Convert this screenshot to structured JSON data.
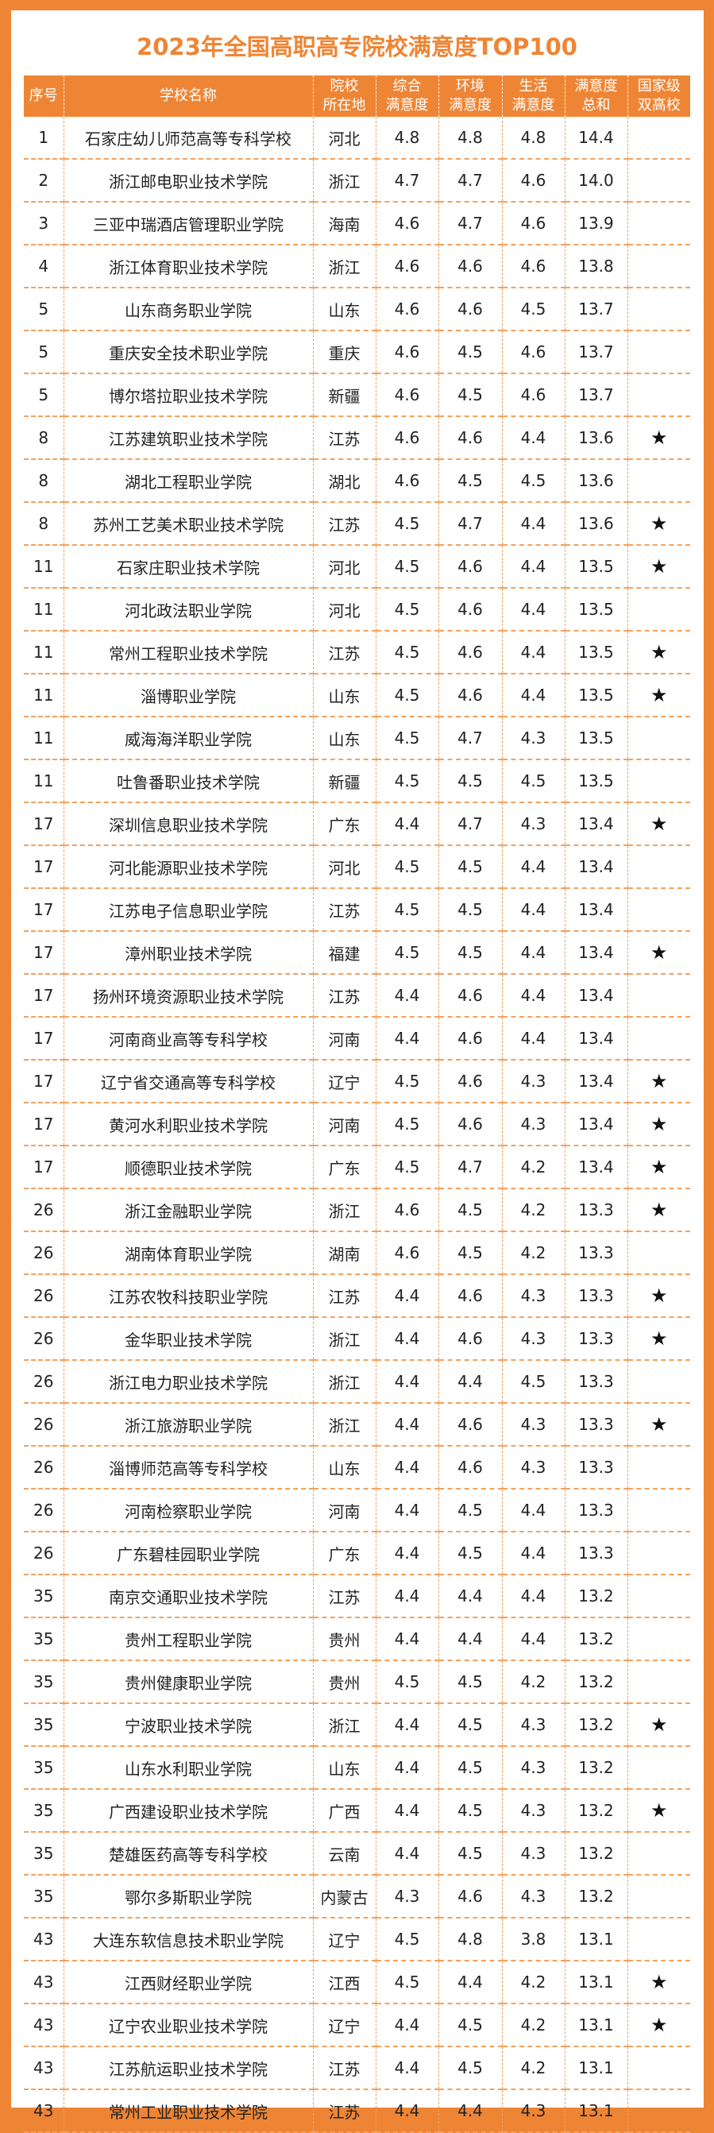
{
  "title": "2023年全国高职高专院校满意度TOP100",
  "headers": [
    "序号",
    "学校名称",
    "院校\n所在地",
    "综合\n满意度",
    "环境\n满意度",
    "生活\n满意度",
    "满意度\n总和",
    "国家级\n双高校"
  ],
  "star_symbol": "★",
  "rows": [
    {
      "rank": "1",
      "name": "石家庄幼儿师范高等专科学校",
      "prov": "河北",
      "overall": "4.8",
      "env": "4.8",
      "life": "4.8",
      "total": "14.4",
      "dual": false
    },
    {
      "rank": "2",
      "name": "浙江邮电职业技术学院",
      "prov": "浙江",
      "overall": "4.7",
      "env": "4.7",
      "life": "4.6",
      "total": "14.0",
      "dual": false
    },
    {
      "rank": "3",
      "name": "三亚中瑞酒店管理职业学院",
      "prov": "海南",
      "overall": "4.6",
      "env": "4.7",
      "life": "4.6",
      "total": "13.9",
      "dual": false
    },
    {
      "rank": "4",
      "name": "浙江体育职业技术学院",
      "prov": "浙江",
      "overall": "4.6",
      "env": "4.6",
      "life": "4.6",
      "total": "13.8",
      "dual": false
    },
    {
      "rank": "5",
      "name": "山东商务职业学院",
      "prov": "山东",
      "overall": "4.6",
      "env": "4.6",
      "life": "4.5",
      "total": "13.7",
      "dual": false
    },
    {
      "rank": "5",
      "name": "重庆安全技术职业学院",
      "prov": "重庆",
      "overall": "4.6",
      "env": "4.5",
      "life": "4.6",
      "total": "13.7",
      "dual": false
    },
    {
      "rank": "5",
      "name": "博尔塔拉职业技术学院",
      "prov": "新疆",
      "overall": "4.6",
      "env": "4.5",
      "life": "4.6",
      "total": "13.7",
      "dual": false
    },
    {
      "rank": "8",
      "name": "江苏建筑职业技术学院",
      "prov": "江苏",
      "overall": "4.6",
      "env": "4.6",
      "life": "4.4",
      "total": "13.6",
      "dual": true
    },
    {
      "rank": "8",
      "name": "湖北工程职业学院",
      "prov": "湖北",
      "overall": "4.6",
      "env": "4.5",
      "life": "4.5",
      "total": "13.6",
      "dual": false
    },
    {
      "rank": "8",
      "name": "苏州工艺美术职业技术学院",
      "prov": "江苏",
      "overall": "4.5",
      "env": "4.7",
      "life": "4.4",
      "total": "13.6",
      "dual": true
    },
    {
      "rank": "11",
      "name": "石家庄职业技术学院",
      "prov": "河北",
      "overall": "4.5",
      "env": "4.6",
      "life": "4.4",
      "total": "13.5",
      "dual": true
    },
    {
      "rank": "11",
      "name": "河北政法职业学院",
      "prov": "河北",
      "overall": "4.5",
      "env": "4.6",
      "life": "4.4",
      "total": "13.5",
      "dual": false
    },
    {
      "rank": "11",
      "name": "常州工程职业技术学院",
      "prov": "江苏",
      "overall": "4.5",
      "env": "4.6",
      "life": "4.4",
      "total": "13.5",
      "dual": true
    },
    {
      "rank": "11",
      "name": "淄博职业学院",
      "prov": "山东",
      "overall": "4.5",
      "env": "4.6",
      "life": "4.4",
      "total": "13.5",
      "dual": true
    },
    {
      "rank": "11",
      "name": "威海海洋职业学院",
      "prov": "山东",
      "overall": "4.5",
      "env": "4.7",
      "life": "4.3",
      "total": "13.5",
      "dual": false
    },
    {
      "rank": "11",
      "name": "吐鲁番职业技术学院",
      "prov": "新疆",
      "overall": "4.5",
      "env": "4.5",
      "life": "4.5",
      "total": "13.5",
      "dual": false
    },
    {
      "rank": "17",
      "name": "深圳信息职业技术学院",
      "prov": "广东",
      "overall": "4.4",
      "env": "4.7",
      "life": "4.3",
      "total": "13.4",
      "dual": true
    },
    {
      "rank": "17",
      "name": "河北能源职业技术学院",
      "prov": "河北",
      "overall": "4.5",
      "env": "4.5",
      "life": "4.4",
      "total": "13.4",
      "dual": false
    },
    {
      "rank": "17",
      "name": "江苏电子信息职业学院",
      "prov": "江苏",
      "overall": "4.5",
      "env": "4.5",
      "life": "4.4",
      "total": "13.4",
      "dual": false
    },
    {
      "rank": "17",
      "name": "漳州职业技术学院",
      "prov": "福建",
      "overall": "4.5",
      "env": "4.5",
      "life": "4.4",
      "total": "13.4",
      "dual": true
    },
    {
      "rank": "17",
      "name": "扬州环境资源职业技术学院",
      "prov": "江苏",
      "overall": "4.4",
      "env": "4.6",
      "life": "4.4",
      "total": "13.4",
      "dual": false
    },
    {
      "rank": "17",
      "name": "河南商业高等专科学校",
      "prov": "河南",
      "overall": "4.4",
      "env": "4.6",
      "life": "4.4",
      "total": "13.4",
      "dual": false
    },
    {
      "rank": "17",
      "name": "辽宁省交通高等专科学校",
      "prov": "辽宁",
      "overall": "4.5",
      "env": "4.6",
      "life": "4.3",
      "total": "13.4",
      "dual": true
    },
    {
      "rank": "17",
      "name": "黄河水利职业技术学院",
      "prov": "河南",
      "overall": "4.5",
      "env": "4.6",
      "life": "4.3",
      "total": "13.4",
      "dual": true
    },
    {
      "rank": "17",
      "name": "顺德职业技术学院",
      "prov": "广东",
      "overall": "4.5",
      "env": "4.7",
      "life": "4.2",
      "total": "13.4",
      "dual": true
    },
    {
      "rank": "26",
      "name": "浙江金融职业学院",
      "prov": "浙江",
      "overall": "4.6",
      "env": "4.5",
      "life": "4.2",
      "total": "13.3",
      "dual": true
    },
    {
      "rank": "26",
      "name": "湖南体育职业学院",
      "prov": "湖南",
      "overall": "4.6",
      "env": "4.5",
      "life": "4.2",
      "total": "13.3",
      "dual": false
    },
    {
      "rank": "26",
      "name": "江苏农牧科技职业学院",
      "prov": "江苏",
      "overall": "4.4",
      "env": "4.6",
      "life": "4.3",
      "total": "13.3",
      "dual": true
    },
    {
      "rank": "26",
      "name": "金华职业技术学院",
      "prov": "浙江",
      "overall": "4.4",
      "env": "4.6",
      "life": "4.3",
      "total": "13.3",
      "dual": true
    },
    {
      "rank": "26",
      "name": "浙江电力职业技术学院",
      "prov": "浙江",
      "overall": "4.4",
      "env": "4.4",
      "life": "4.5",
      "total": "13.3",
      "dual": false
    },
    {
      "rank": "26",
      "name": "浙江旅游职业学院",
      "prov": "浙江",
      "overall": "4.4",
      "env": "4.6",
      "life": "4.3",
      "total": "13.3",
      "dual": true
    },
    {
      "rank": "26",
      "name": "淄博师范高等专科学校",
      "prov": "山东",
      "overall": "4.4",
      "env": "4.6",
      "life": "4.3",
      "total": "13.3",
      "dual": false
    },
    {
      "rank": "26",
      "name": "河南检察职业学院",
      "prov": "河南",
      "overall": "4.4",
      "env": "4.5",
      "life": "4.4",
      "total": "13.3",
      "dual": false
    },
    {
      "rank": "26",
      "name": "广东碧桂园职业学院",
      "prov": "广东",
      "overall": "4.4",
      "env": "4.5",
      "life": "4.4",
      "total": "13.3",
      "dual": false
    },
    {
      "rank": "35",
      "name": "南京交通职业技术学院",
      "prov": "江苏",
      "overall": "4.4",
      "env": "4.4",
      "life": "4.4",
      "total": "13.2",
      "dual": false
    },
    {
      "rank": "35",
      "name": "贵州工程职业学院",
      "prov": "贵州",
      "overall": "4.4",
      "env": "4.4",
      "life": "4.4",
      "total": "13.2",
      "dual": false
    },
    {
      "rank": "35",
      "name": "贵州健康职业学院",
      "prov": "贵州",
      "overall": "4.5",
      "env": "4.5",
      "life": "4.2",
      "total": "13.2",
      "dual": false
    },
    {
      "rank": "35",
      "name": "宁波职业技术学院",
      "prov": "浙江",
      "overall": "4.4",
      "env": "4.5",
      "life": "4.3",
      "total": "13.2",
      "dual": true
    },
    {
      "rank": "35",
      "name": "山东水利职业学院",
      "prov": "山东",
      "overall": "4.4",
      "env": "4.5",
      "life": "4.3",
      "total": "13.2",
      "dual": false
    },
    {
      "rank": "35",
      "name": "广西建设职业技术学院",
      "prov": "广西",
      "overall": "4.4",
      "env": "4.5",
      "life": "4.3",
      "total": "13.2",
      "dual": true
    },
    {
      "rank": "35",
      "name": "楚雄医药高等专科学校",
      "prov": "云南",
      "overall": "4.4",
      "env": "4.5",
      "life": "4.3",
      "total": "13.2",
      "dual": false
    },
    {
      "rank": "35",
      "name": "鄂尔多斯职业学院",
      "prov": "内蒙古",
      "overall": "4.3",
      "env": "4.6",
      "life": "4.3",
      "total": "13.2",
      "dual": false
    },
    {
      "rank": "43",
      "name": "大连东软信息技术职业学院",
      "prov": "辽宁",
      "overall": "4.5",
      "env": "4.8",
      "life": "3.8",
      "total": "13.1",
      "dual": false
    },
    {
      "rank": "43",
      "name": "江西财经职业学院",
      "prov": "江西",
      "overall": "4.5",
      "env": "4.4",
      "life": "4.2",
      "total": "13.1",
      "dual": true
    },
    {
      "rank": "43",
      "name": "辽宁农业职业技术学院",
      "prov": "辽宁",
      "overall": "4.4",
      "env": "4.5",
      "life": "4.2",
      "total": "13.1",
      "dual": true
    },
    {
      "rank": "43",
      "name": "江苏航运职业技术学院",
      "prov": "江苏",
      "overall": "4.4",
      "env": "4.5",
      "life": "4.2",
      "total": "13.1",
      "dual": false
    },
    {
      "rank": "43",
      "name": "常州工业职业技术学院",
      "prov": "江苏",
      "overall": "4.4",
      "env": "4.4",
      "life": "4.3",
      "total": "13.1",
      "dual": false
    }
  ],
  "colors": {
    "accent": "#ee8535",
    "header_text": "#ffffff",
    "body_text": "#222222"
  }
}
